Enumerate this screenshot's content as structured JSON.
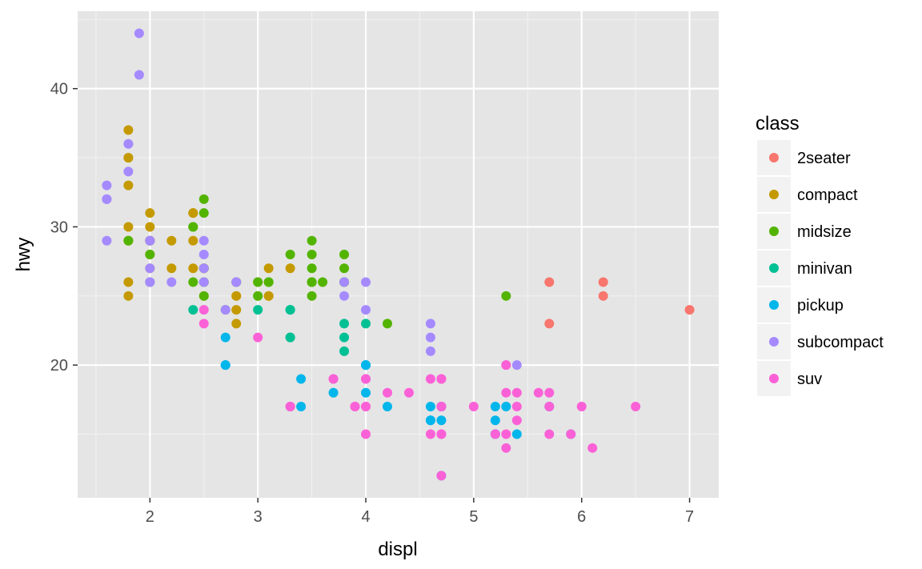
{
  "chart_data": {
    "type": "scatter",
    "title": "",
    "xlabel": "displ",
    "ylabel": "hwy",
    "xlim": [
      1.33,
      7.27
    ],
    "ylim": [
      10.4,
      45.6
    ],
    "x_ticks": [
      2,
      3,
      4,
      5,
      6,
      7
    ],
    "y_ticks": [
      20,
      30,
      40
    ],
    "grid": true,
    "panel_background": "#e5e5e5",
    "legend": {
      "title": "class",
      "position": "right"
    },
    "series": [
      {
        "name": "2seater",
        "color": "#f8766d",
        "points": [
          [
            5.7,
            26
          ],
          [
            5.7,
            23
          ],
          [
            6.2,
            26
          ],
          [
            6.2,
            25
          ],
          [
            7.0,
            24
          ]
        ]
      },
      {
        "name": "compact",
        "color": "#c49a00",
        "points": [
          [
            1.8,
            29
          ],
          [
            1.8,
            29
          ],
          [
            2.0,
            31
          ],
          [
            2.0,
            30
          ],
          [
            2.8,
            26
          ],
          [
            2.8,
            26
          ],
          [
            3.1,
            27
          ],
          [
            1.8,
            26
          ],
          [
            1.8,
            25
          ],
          [
            2.0,
            28
          ],
          [
            2.0,
            27
          ],
          [
            2.8,
            25
          ],
          [
            2.8,
            25
          ],
          [
            3.1,
            25
          ],
          [
            3.1,
            25
          ],
          [
            2.2,
            27
          ],
          [
            2.2,
            29
          ],
          [
            2.4,
            31
          ],
          [
            2.4,
            31
          ],
          [
            3.0,
            26
          ],
          [
            3.3,
            27
          ],
          [
            1.8,
            35
          ],
          [
            1.8,
            37
          ],
          [
            1.8,
            35
          ],
          [
            1.8,
            33
          ],
          [
            2.0,
            29
          ],
          [
            2.5,
            25
          ],
          [
            2.5,
            27
          ],
          [
            2.8,
            24
          ],
          [
            2.8,
            23
          ],
          [
            1.8,
            30
          ],
          [
            2.0,
            29
          ],
          [
            2.0,
            29
          ],
          [
            2.5,
            27
          ],
          [
            2.4,
            29
          ],
          [
            2.4,
            27
          ]
        ]
      },
      {
        "name": "midsize",
        "color": "#53b400",
        "points": [
          [
            1.8,
            29
          ],
          [
            2.0,
            28
          ],
          [
            2.4,
            26
          ],
          [
            2.5,
            26
          ],
          [
            2.5,
            25
          ],
          [
            3.5,
            26
          ],
          [
            3.5,
            26
          ],
          [
            3.8,
            26
          ],
          [
            3.8,
            26
          ],
          [
            3.8,
            26
          ],
          [
            3.0,
            25
          ],
          [
            3.3,
            28
          ],
          [
            3.5,
            26
          ],
          [
            3.6,
            26
          ],
          [
            2.4,
            30
          ],
          [
            2.4,
            30
          ],
          [
            2.5,
            31
          ],
          [
            2.5,
            32
          ],
          [
            2.8,
            26
          ],
          [
            3.0,
            26
          ],
          [
            3.1,
            26
          ],
          [
            3.1,
            26
          ],
          [
            3.5,
            29
          ],
          [
            3.5,
            28
          ],
          [
            3.8,
            27
          ],
          [
            3.8,
            28
          ],
          [
            4.2,
            23
          ],
          [
            5.3,
            25
          ],
          [
            2.5,
            26
          ],
          [
            2.7,
            24
          ],
          [
            3.0,
            25
          ],
          [
            3.5,
            25
          ],
          [
            3.5,
            27
          ],
          [
            2.5,
            27
          ],
          [
            2.0,
            29
          ],
          [
            2.0,
            26
          ]
        ]
      },
      {
        "name": "minivan",
        "color": "#00c094",
        "points": [
          [
            2.4,
            24
          ],
          [
            3.0,
            24
          ],
          [
            3.3,
            22
          ],
          [
            3.3,
            22
          ],
          [
            3.3,
            24
          ],
          [
            3.3,
            24
          ],
          [
            3.3,
            17
          ],
          [
            3.8,
            22
          ],
          [
            3.8,
            21
          ],
          [
            3.8,
            23
          ],
          [
            4.0,
            23
          ]
        ]
      },
      {
        "name": "pickup",
        "color": "#00b6eb",
        "points": [
          [
            2.7,
            20
          ],
          [
            2.7,
            20
          ],
          [
            2.7,
            22
          ],
          [
            3.4,
            17
          ],
          [
            3.4,
            19
          ],
          [
            3.7,
            18
          ],
          [
            4.0,
            20
          ],
          [
            4.0,
            18
          ],
          [
            4.0,
            20
          ],
          [
            4.2,
            17
          ],
          [
            4.6,
            17
          ],
          [
            4.6,
            16
          ],
          [
            4.7,
            16
          ],
          [
            4.7,
            17
          ],
          [
            4.7,
            17
          ],
          [
            5.2,
            15
          ],
          [
            5.2,
            16
          ],
          [
            5.2,
            17
          ],
          [
            5.7,
            17
          ],
          [
            5.9,
            15
          ],
          [
            5.3,
            17
          ],
          [
            5.4,
            15
          ],
          [
            4.7,
            12
          ],
          [
            4.7,
            17
          ],
          [
            4.0,
            20
          ],
          [
            4.6,
            16
          ],
          [
            5.2,
            15
          ]
        ]
      },
      {
        "name": "subcompact",
        "color": "#a58aff",
        "points": [
          [
            1.6,
            33
          ],
          [
            1.6,
            32
          ],
          [
            1.6,
            32
          ],
          [
            1.6,
            29
          ],
          [
            1.6,
            32
          ],
          [
            1.8,
            34
          ],
          [
            1.8,
            36
          ],
          [
            1.8,
            36
          ],
          [
            2.0,
            29
          ],
          [
            2.0,
            26
          ],
          [
            2.0,
            27
          ],
          [
            1.9,
            44
          ],
          [
            1.9,
            41
          ],
          [
            2.0,
            29
          ],
          [
            2.0,
            26
          ],
          [
            2.2,
            26
          ],
          [
            2.5,
            28
          ],
          [
            2.5,
            29
          ],
          [
            2.5,
            26
          ],
          [
            2.7,
            24
          ],
          [
            2.8,
            26
          ],
          [
            3.8,
            26
          ],
          [
            3.8,
            25
          ],
          [
            4.0,
            24
          ],
          [
            4.0,
            26
          ],
          [
            4.6,
            23
          ],
          [
            4.6,
            22
          ],
          [
            4.6,
            21
          ],
          [
            5.4,
            20
          ],
          [
            2.5,
            27
          ],
          [
            2.8,
            26
          ]
        ]
      },
      {
        "name": "suv",
        "color": "#fb61d7",
        "points": [
          [
            5.3,
            20
          ],
          [
            5.3,
            15
          ],
          [
            5.3,
            20
          ],
          [
            5.7,
            17
          ],
          [
            6.5,
            17
          ],
          [
            3.7,
            19
          ],
          [
            3.7,
            19
          ],
          [
            3.9,
            17
          ],
          [
            3.9,
            17
          ],
          [
            4.7,
            17
          ],
          [
            4.7,
            19
          ],
          [
            4.7,
            15
          ],
          [
            5.2,
            15
          ],
          [
            5.7,
            18
          ],
          [
            5.9,
            15
          ],
          [
            4.7,
            17
          ],
          [
            4.7,
            12
          ],
          [
            4.7,
            19
          ],
          [
            4.7,
            15
          ],
          [
            5.7,
            15
          ],
          [
            6.1,
            14
          ],
          [
            5.3,
            18
          ],
          [
            5.3,
            14
          ],
          [
            5.4,
            17
          ],
          [
            5.4,
            18
          ],
          [
            5.6,
            18
          ],
          [
            2.5,
            23
          ],
          [
            2.5,
            24
          ],
          [
            4.0,
            17
          ],
          [
            4.0,
            19
          ],
          [
            4.0,
            15
          ],
          [
            4.0,
            17
          ],
          [
            4.6,
            19
          ],
          [
            5.0,
            17
          ],
          [
            4.2,
            18
          ],
          [
            4.4,
            18
          ],
          [
            4.6,
            15
          ],
          [
            5.4,
            16
          ],
          [
            6.0,
            17
          ],
          [
            3.3,
            17
          ],
          [
            3.3,
            17
          ],
          [
            4.0,
            19
          ],
          [
            3.0,
            22
          ]
        ]
      }
    ]
  }
}
